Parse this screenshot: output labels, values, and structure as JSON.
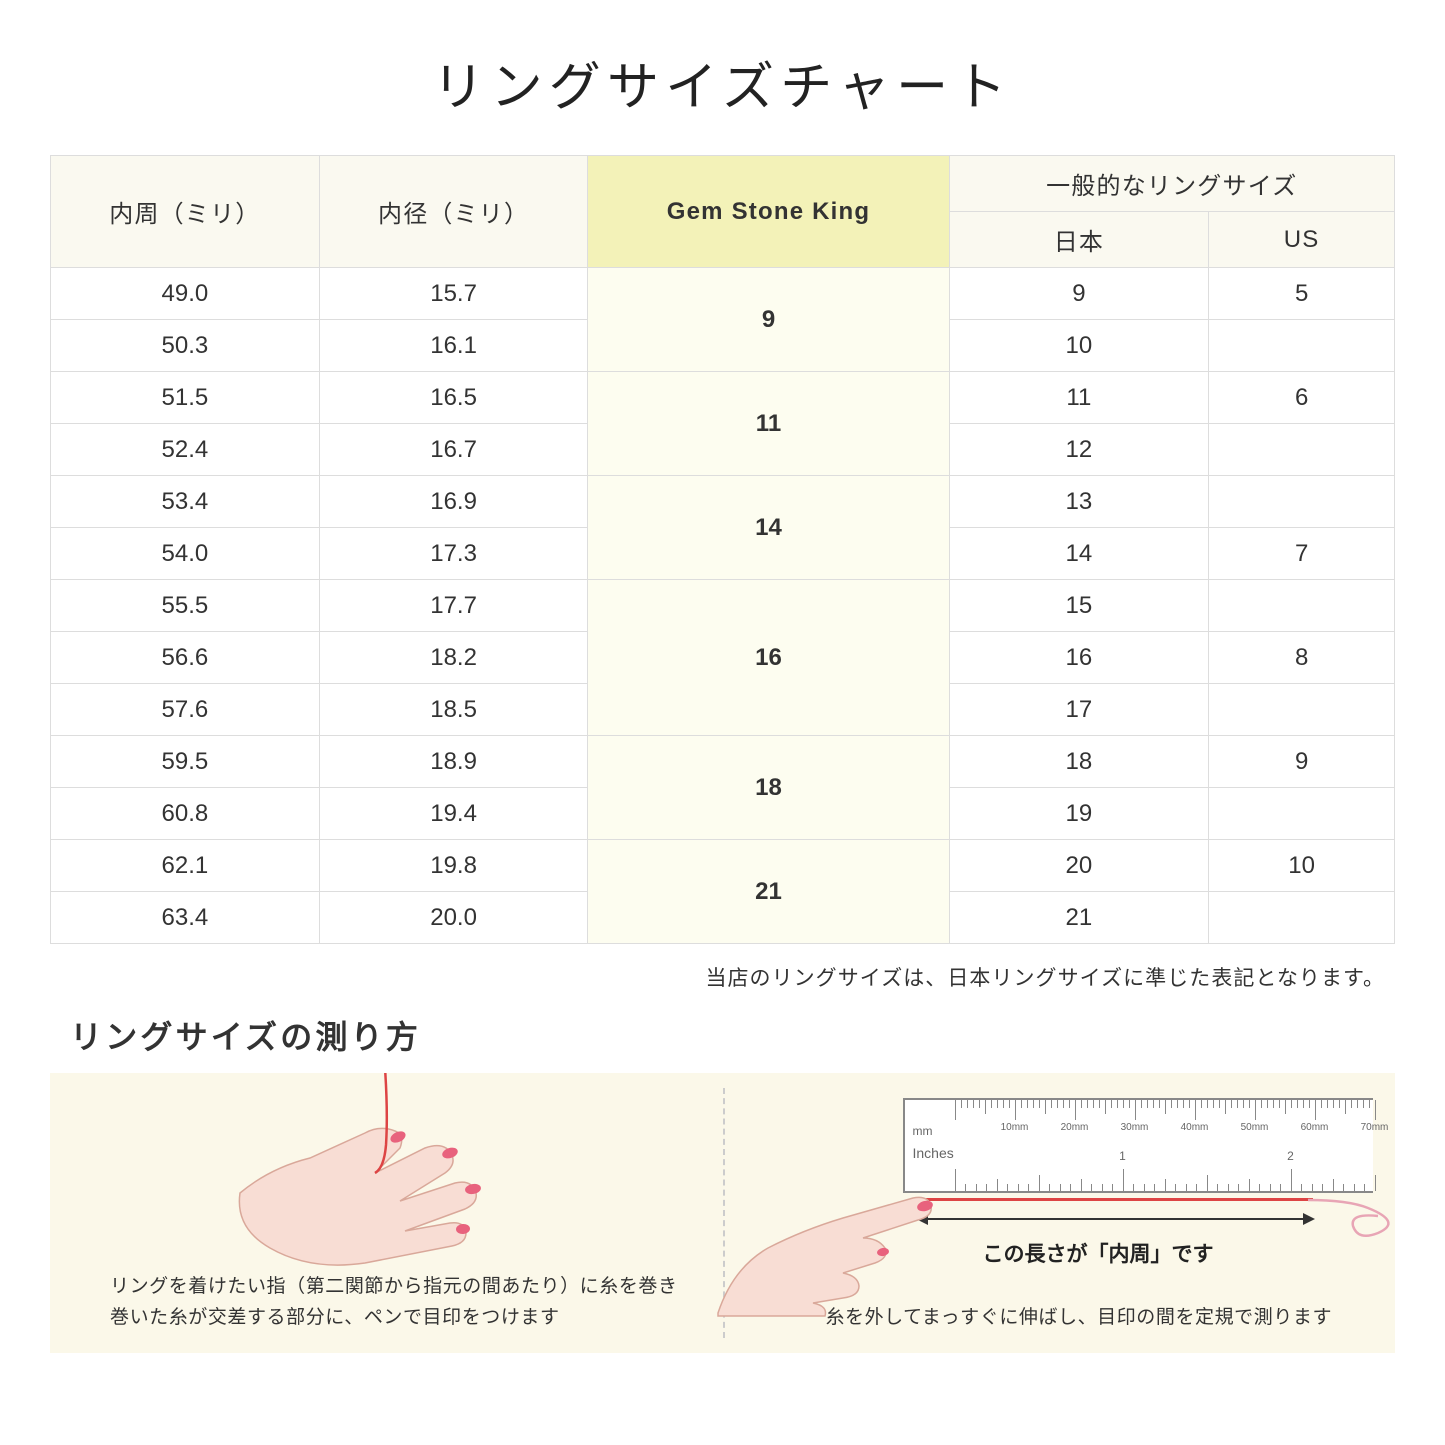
{
  "title": "リングサイズチャート",
  "headers": {
    "circumference": "内周（ミリ）",
    "diameter": "内径（ミリ）",
    "gsk": "Gem Stone King",
    "common": "一般的なリングサイズ",
    "japan": "日本",
    "us": "US"
  },
  "rows": [
    {
      "circ": "49.0",
      "dia": "15.7",
      "jp": "9",
      "us": "5"
    },
    {
      "circ": "50.3",
      "dia": "16.1",
      "jp": "10",
      "us": ""
    },
    {
      "circ": "51.5",
      "dia": "16.5",
      "jp": "11",
      "us": "6"
    },
    {
      "circ": "52.4",
      "dia": "16.7",
      "jp": "12",
      "us": ""
    },
    {
      "circ": "53.4",
      "dia": "16.9",
      "jp": "13",
      "us": ""
    },
    {
      "circ": "54.0",
      "dia": "17.3",
      "jp": "14",
      "us": "7"
    },
    {
      "circ": "55.5",
      "dia": "17.7",
      "jp": "15",
      "us": ""
    },
    {
      "circ": "56.6",
      "dia": "18.2",
      "jp": "16",
      "us": "8"
    },
    {
      "circ": "57.6",
      "dia": "18.5",
      "jp": "17",
      "us": ""
    },
    {
      "circ": "59.5",
      "dia": "18.9",
      "jp": "18",
      "us": "9"
    },
    {
      "circ": "60.8",
      "dia": "19.4",
      "jp": "19",
      "us": ""
    },
    {
      "circ": "62.1",
      "dia": "19.8",
      "jp": "20",
      "us": "10"
    },
    {
      "circ": "63.4",
      "dia": "20.0",
      "jp": "21",
      "us": ""
    }
  ],
  "gsk_groups": [
    {
      "span": 2,
      "value": "9"
    },
    {
      "span": 2,
      "value": "11"
    },
    {
      "span": 2,
      "value": "14"
    },
    {
      "span": 3,
      "value": "16"
    },
    {
      "span": 2,
      "value": "18"
    },
    {
      "span": 2,
      "value": "21"
    }
  ],
  "note": "当店のリングサイズは、日本リングサイズに準じた表記となります。",
  "howto_title": "リングサイズの測り方",
  "caption_left": "リングを着けたい指（第二関節から指元の間あたり）に糸を巻き\n巻いた糸が交差する部分に、ペンで目印をつけます",
  "caption_right": "糸を外してまっすぐに伸ばし、目印の間を定規で測ります",
  "measure_label": "この長さが「内周」です",
  "ruler": {
    "mm_unit": "mm",
    "in_unit": "Inches",
    "mm_labels": [
      "10mm",
      "20mm",
      "30mm",
      "40mm",
      "50mm",
      "60mm",
      "70mm"
    ],
    "in_labels": [
      "1",
      "2"
    ]
  },
  "colors": {
    "header_bg": "#faf9f0",
    "gsk_bg": "#f3f2b8",
    "gsk_cell_bg": "#fdfdf0",
    "howto_bg": "#fbf8e9",
    "thread": "#d44",
    "hand_fill": "#f8ddd4",
    "hand_stroke": "#d9a89a",
    "nail": "#e8627d"
  }
}
